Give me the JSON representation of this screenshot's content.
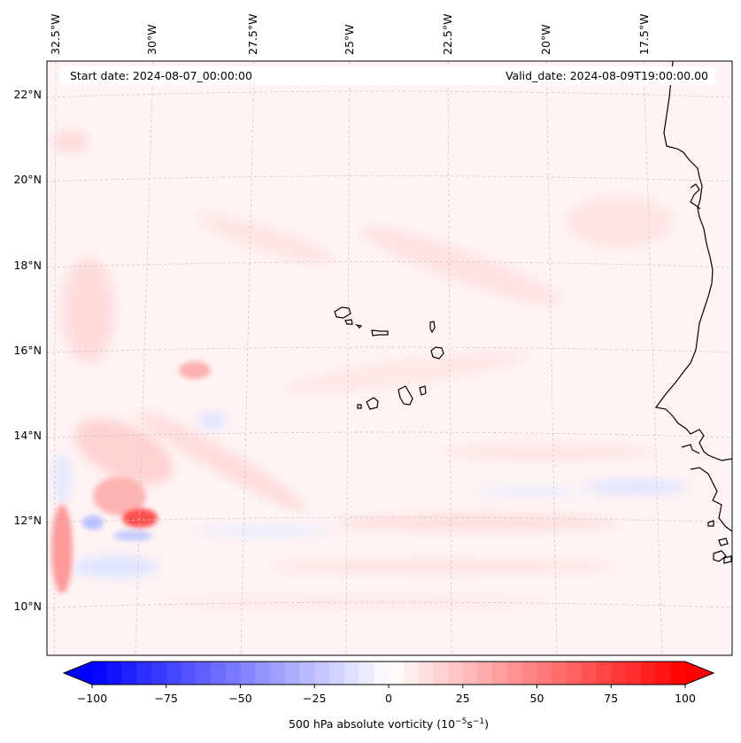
{
  "map": {
    "start_label": "Start date: 2024-08-07_00:00:00",
    "valid_label": "Valid_date: 2024-08-09T19:00:00.00",
    "lon_ticks": [
      "32.5°W",
      "30°W",
      "27.5°W",
      "25°W",
      "22.5°W",
      "20°W",
      "17.5°W"
    ],
    "lat_ticks": [
      "22°N",
      "20°N",
      "18°N",
      "16°N",
      "14°N",
      "12°N",
      "10°N"
    ],
    "features": [
      "Cabo Verde islands",
      "West African coastline"
    ]
  },
  "colorbar": {
    "ticks": [
      "−100",
      "−75",
      "−50",
      "−25",
      "0",
      "25",
      "50",
      "75",
      "100"
    ],
    "label_main": "500 hPa absolute vorticity (10",
    "label_exp1": "−5",
    "label_mid": "s",
    "label_exp2": "−1",
    "label_end": ")",
    "range": [
      -100,
      100
    ],
    "levels": 40,
    "colormap": "bwr",
    "extend": "both"
  },
  "colors": {
    "min": "#0000ff",
    "mid": "#ffffff",
    "max": "#ff0000",
    "coast": "#000000",
    "grid": "#c8c8c8"
  }
}
